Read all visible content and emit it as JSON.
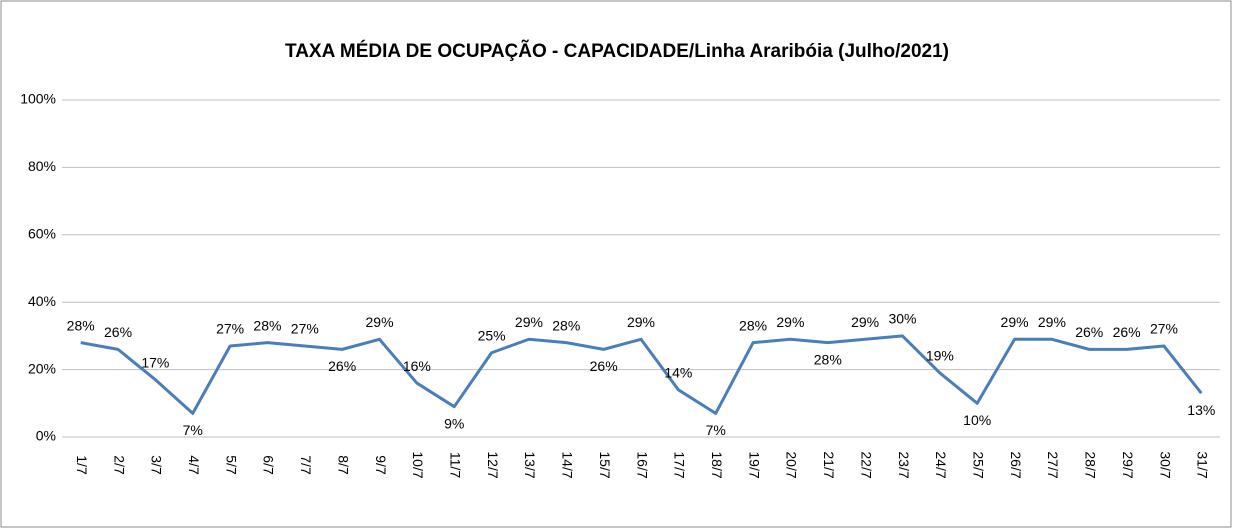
{
  "chart_data": {
    "type": "line",
    "title": "TAXA MÉDIA DE OCUPAÇÃO - CAPACIDADE/Linha Araribóia (Julho/2021)",
    "categories": [
      "1/7",
      "2/7",
      "3/7",
      "4/7",
      "5/7",
      "6/7",
      "7/7",
      "8/7",
      "9/7",
      "10/7",
      "11/7",
      "12/7",
      "13/7",
      "14/7",
      "15/7",
      "16/7",
      "17/7",
      "18/7",
      "19/7",
      "20/7",
      "21/7",
      "22/7",
      "23/7",
      "24/7",
      "25/7",
      "26/7",
      "27/7",
      "28/7",
      "29/7",
      "30/7",
      "31/7"
    ],
    "series": [
      {
        "name": "Taxa",
        "color": "#4a7ebb",
        "values": [
          28,
          26,
          17,
          7,
          27,
          28,
          27,
          26,
          29,
          16,
          9,
          25,
          29,
          28,
          26,
          29,
          14,
          7,
          28,
          29,
          28,
          29,
          30,
          19,
          10,
          29,
          29,
          26,
          26,
          27,
          13
        ],
        "value_labels": [
          "28%",
          "26%",
          "17%",
          "7%",
          "27%",
          "28%",
          "27%",
          "26%",
          "29%",
          "16%",
          "9%",
          "25%",
          "29%",
          "28%",
          "26%",
          "29%",
          "14%",
          "7%",
          "28%",
          "29%",
          "28%",
          "29%",
          "30%",
          "19%",
          "10%",
          "29%",
          "29%",
          "26%",
          "26%",
          "27%",
          "13%"
        ]
      }
    ],
    "ylim": [
      0,
      100
    ],
    "yticks": [
      {
        "value": 0,
        "label": "0%"
      },
      {
        "value": 20,
        "label": "20%"
      },
      {
        "value": 40,
        "label": "40%"
      },
      {
        "value": 60,
        "label": "60%"
      },
      {
        "value": 80,
        "label": "80%"
      },
      {
        "value": 100,
        "label": "100%"
      }
    ],
    "grid": true
  }
}
